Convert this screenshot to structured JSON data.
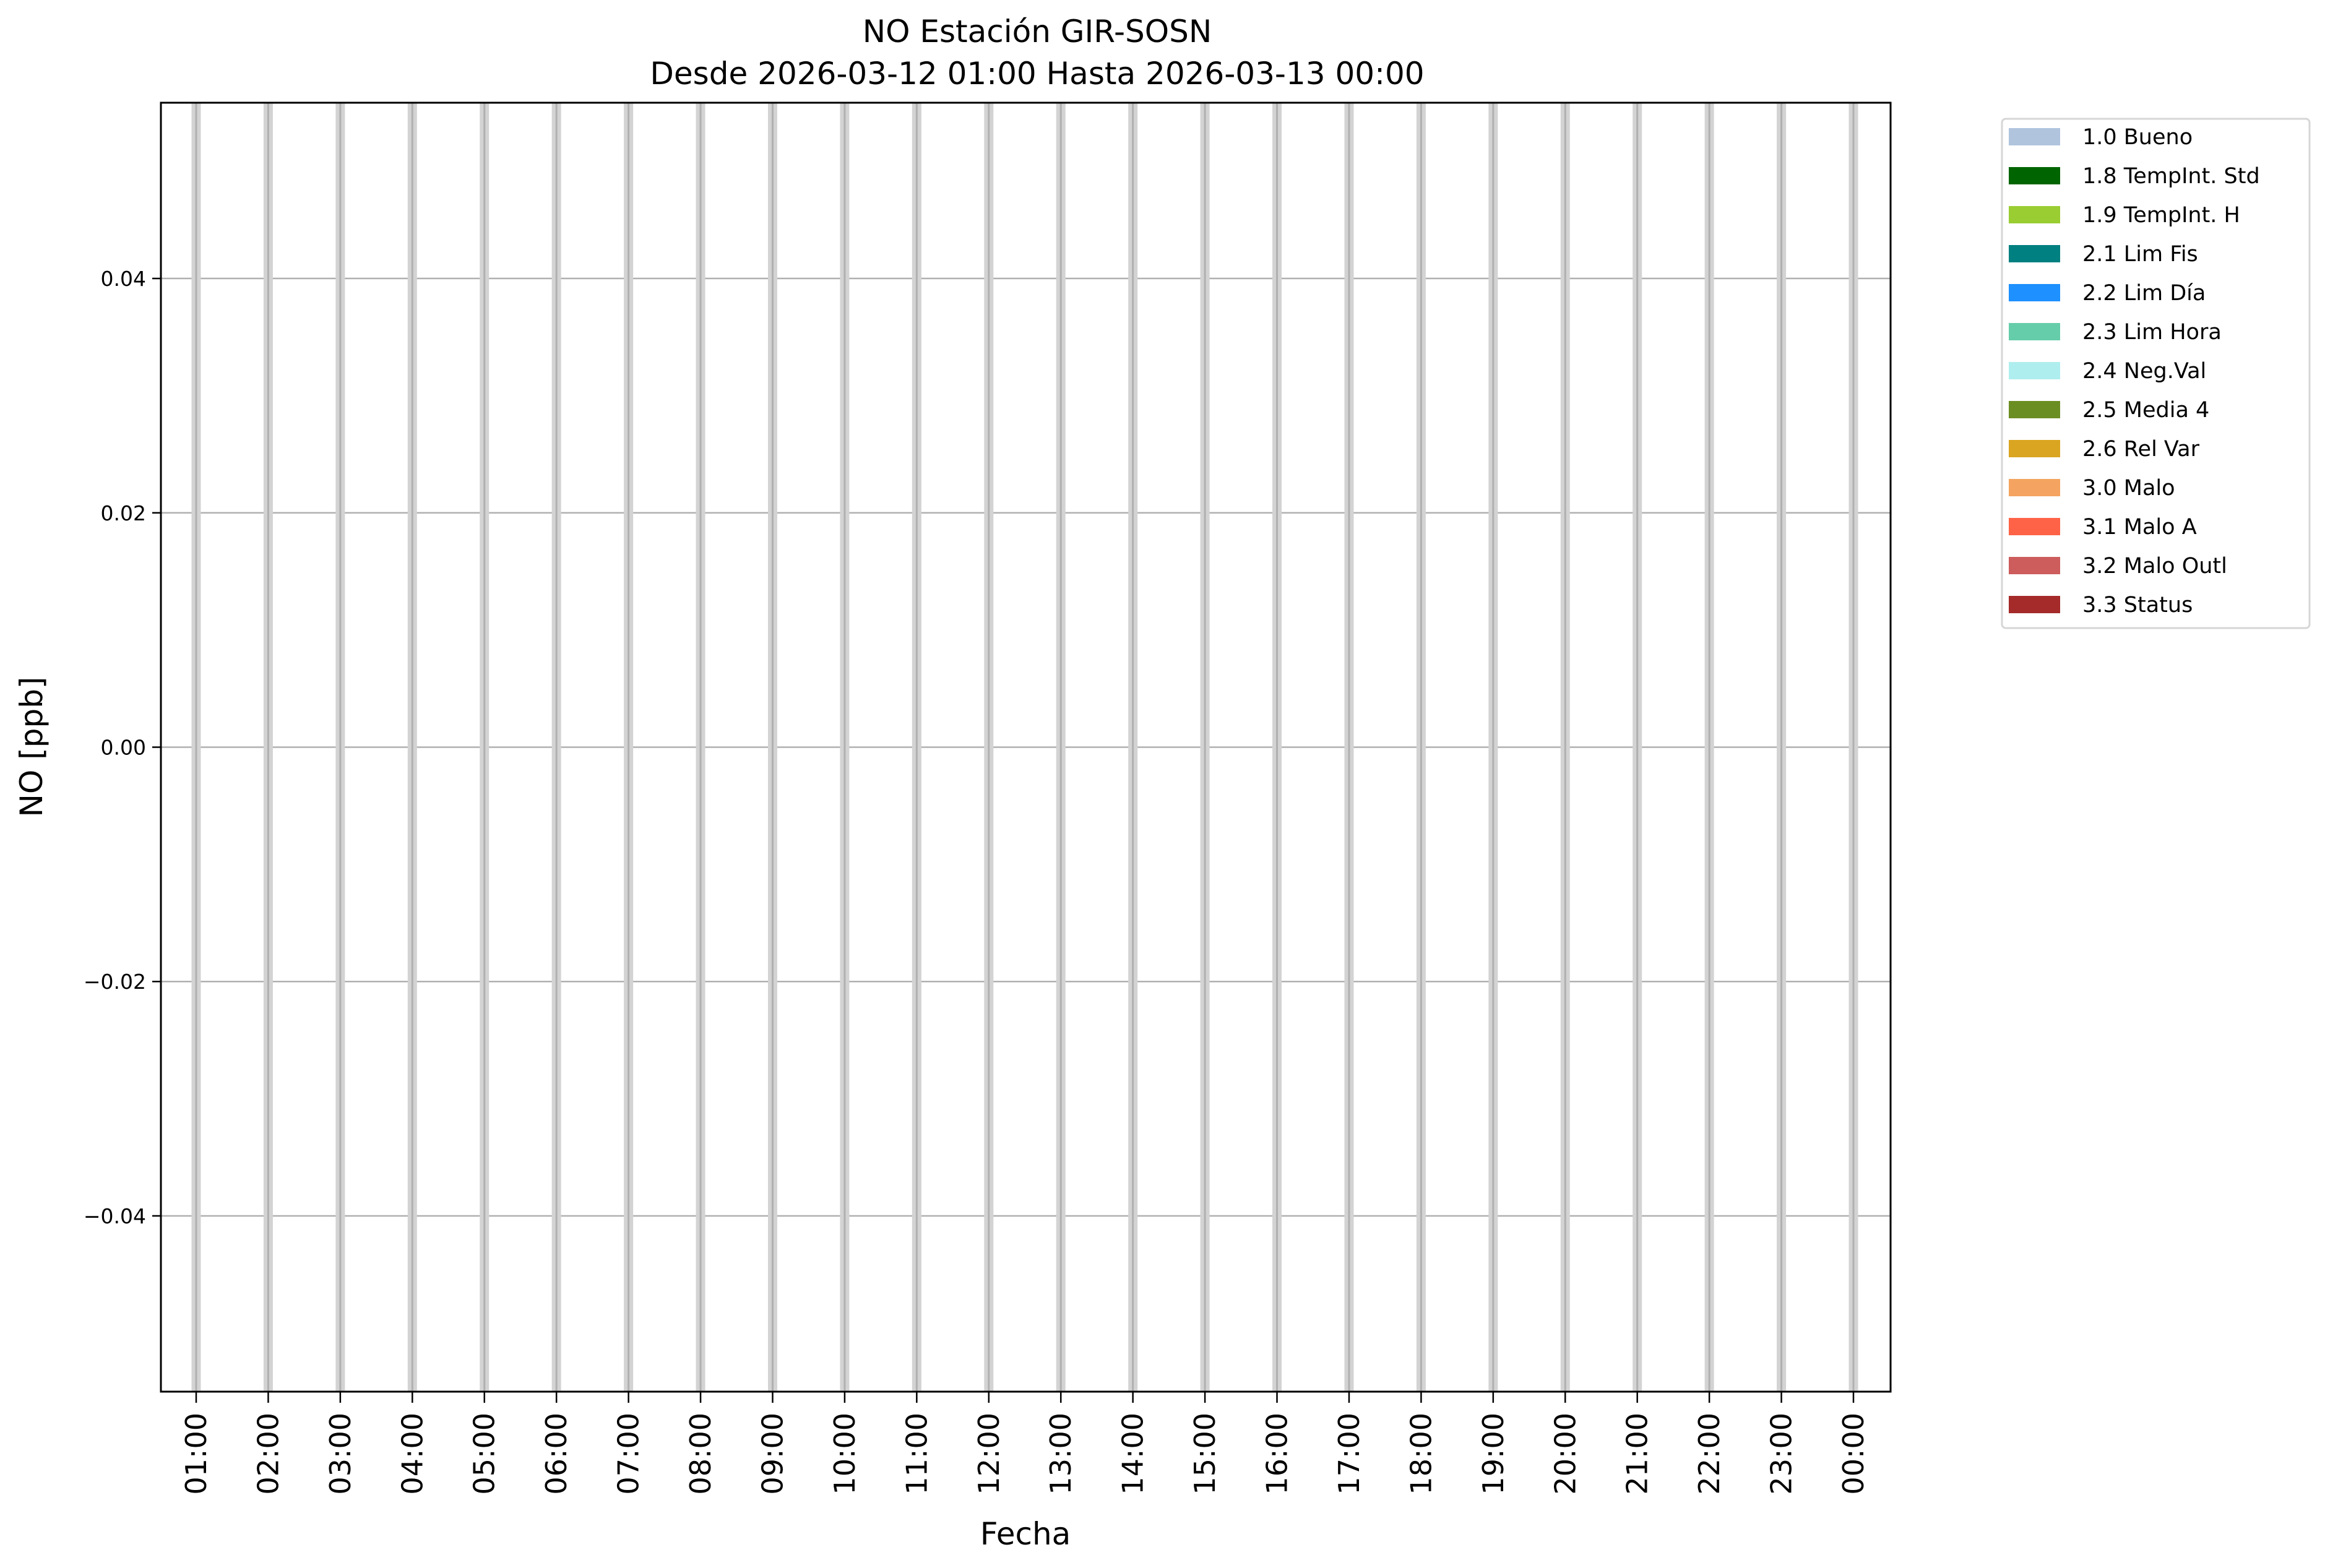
{
  "chart_data": {
    "type": "bar",
    "title": "NO Estación GIR-SOSN",
    "subtitle": "Desde 2026-03-12 01:00 Hasta 2026-03-13 00:00",
    "xlabel": "Fecha",
    "ylabel": "NO [ppb]",
    "categories": [
      "01:00",
      "02:00",
      "03:00",
      "04:00",
      "05:00",
      "06:00",
      "07:00",
      "08:00",
      "09:00",
      "10:00",
      "11:00",
      "12:00",
      "13:00",
      "14:00",
      "15:00",
      "16:00",
      "17:00",
      "18:00",
      "19:00",
      "20:00",
      "21:00",
      "22:00",
      "23:00",
      "00:00"
    ],
    "values": [
      null,
      null,
      null,
      null,
      null,
      null,
      null,
      null,
      null,
      null,
      null,
      null,
      null,
      null,
      null,
      null,
      null,
      null,
      null,
      null,
      null,
      null,
      null,
      null
    ],
    "ylim": [
      -0.055,
      0.055
    ],
    "yticks": [
      0.04,
      0.02,
      0.0,
      -0.02,
      -0.04
    ],
    "ytick_labels": [
      "0.04",
      "0.02",
      "0.00",
      "−0.02",
      "−0.04"
    ],
    "grid": true,
    "bar_color": "#d3d3d3",
    "grid_color": "#b0b0b0",
    "legend_position": "outside-top-right",
    "legend": [
      {
        "label": "1.0 Bueno",
        "color": "#b0c4de"
      },
      {
        "label": "1.8 TempInt. Std",
        "color": "#006400"
      },
      {
        "label": "1.9 TempInt. H",
        "color": "#9acd32"
      },
      {
        "label": "2.1 Lim Fis",
        "color": "#008080"
      },
      {
        "label": "2.2 Lim Día",
        "color": "#1e90ff"
      },
      {
        "label": "2.3 Lim Hora",
        "color": "#66cdaa"
      },
      {
        "label": "2.4 Neg.Val",
        "color": "#afeeee"
      },
      {
        "label": "2.5 Media 4",
        "color": "#6b8e23"
      },
      {
        "label": "2.6 Rel Var",
        "color": "#daa520"
      },
      {
        "label": "3.0 Malo",
        "color": "#f4a460"
      },
      {
        "label": "3.1 Malo A",
        "color": "#ff6347"
      },
      {
        "label": "3.2 Malo Outl",
        "color": "#cd5c5c"
      },
      {
        "label": "3.3 Status",
        "color": "#a52a2a"
      }
    ]
  }
}
